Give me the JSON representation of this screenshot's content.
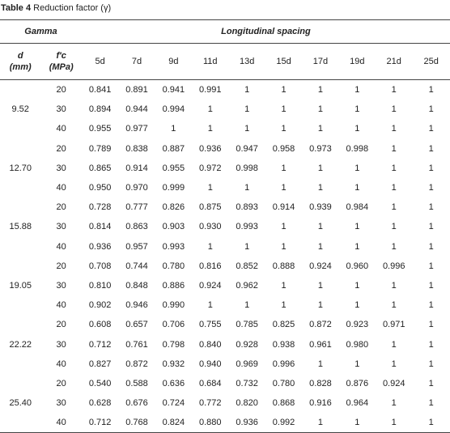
{
  "caption": {
    "label": "Table 4",
    "text": "Reduction factor (γ)"
  },
  "headers": {
    "gamma": "Gamma",
    "longitudinal": "Longitudinal spacing",
    "d_line1": "d",
    "d_line2": "(mm)",
    "fc_line1": "f′c",
    "fc_line2": "(MPa)",
    "spacings": [
      "5d",
      "7d",
      "9d",
      "11d",
      "13d",
      "15d",
      "17d",
      "19d",
      "21d",
      "25d"
    ]
  },
  "groups": [
    {
      "d": "9.52",
      "rows": [
        {
          "fc": "20",
          "values": [
            "0.841",
            "0.891",
            "0.941",
            "0.991",
            "1",
            "1",
            "1",
            "1",
            "1",
            "1"
          ]
        },
        {
          "fc": "30",
          "values": [
            "0.894",
            "0.944",
            "0.994",
            "1",
            "1",
            "1",
            "1",
            "1",
            "1",
            "1"
          ]
        },
        {
          "fc": "40",
          "values": [
            "0.955",
            "0.977",
            "1",
            "1",
            "1",
            "1",
            "1",
            "1",
            "1",
            "1"
          ]
        }
      ]
    },
    {
      "d": "12.70",
      "rows": [
        {
          "fc": "20",
          "values": [
            "0.789",
            "0.838",
            "0.887",
            "0.936",
            "0.947",
            "0.958",
            "0.973",
            "0.998",
            "1",
            "1"
          ]
        },
        {
          "fc": "30",
          "values": [
            "0.865",
            "0.914",
            "0.955",
            "0.972",
            "0.998",
            "1",
            "1",
            "1",
            "1",
            "1"
          ]
        },
        {
          "fc": "40",
          "values": [
            "0.950",
            "0.970",
            "0.999",
            "1",
            "1",
            "1",
            "1",
            "1",
            "1",
            "1"
          ]
        }
      ]
    },
    {
      "d": "15.88",
      "rows": [
        {
          "fc": "20",
          "values": [
            "0.728",
            "0.777",
            "0.826",
            "0.875",
            "0.893",
            "0.914",
            "0.939",
            "0.984",
            "1",
            "1"
          ]
        },
        {
          "fc": "30",
          "values": [
            "0.814",
            "0.863",
            "0.903",
            "0.930",
            "0.993",
            "1",
            "1",
            "1",
            "1",
            "1"
          ]
        },
        {
          "fc": "40",
          "values": [
            "0.936",
            "0.957",
            "0.993",
            "1",
            "1",
            "1",
            "1",
            "1",
            "1",
            "1"
          ]
        }
      ]
    },
    {
      "d": "19.05",
      "rows": [
        {
          "fc": "20",
          "values": [
            "0.708",
            "0.744",
            "0.780",
            "0.816",
            "0.852",
            "0.888",
            "0.924",
            "0.960",
            "0.996",
            "1"
          ]
        },
        {
          "fc": "30",
          "values": [
            "0.810",
            "0.848",
            "0.886",
            "0.924",
            "0.962",
            "1",
            "1",
            "1",
            "1",
            "1"
          ]
        },
        {
          "fc": "40",
          "values": [
            "0.902",
            "0.946",
            "0.990",
            "1",
            "1",
            "1",
            "1",
            "1",
            "1",
            "1"
          ]
        }
      ]
    },
    {
      "d": "22.22",
      "rows": [
        {
          "fc": "20",
          "values": [
            "0.608",
            "0.657",
            "0.706",
            "0.755",
            "0.785",
            "0.825",
            "0.872",
            "0.923",
            "0.971",
            "1"
          ]
        },
        {
          "fc": "30",
          "values": [
            "0.712",
            "0.761",
            "0.798",
            "0.840",
            "0.928",
            "0.938",
            "0.961",
            "0.980",
            "1",
            "1"
          ]
        },
        {
          "fc": "40",
          "values": [
            "0.827",
            "0.872",
            "0.932",
            "0.940",
            "0.969",
            "0.996",
            "1",
            "1",
            "1",
            "1"
          ]
        }
      ]
    },
    {
      "d": "25.40",
      "rows": [
        {
          "fc": "20",
          "values": [
            "0.540",
            "0.588",
            "0.636",
            "0.684",
            "0.732",
            "0.780",
            "0.828",
            "0.876",
            "0.924",
            "1"
          ]
        },
        {
          "fc": "30",
          "values": [
            "0.628",
            "0.676",
            "0.724",
            "0.772",
            "0.820",
            "0.868",
            "0.916",
            "0.964",
            "1",
            "1"
          ]
        },
        {
          "fc": "40",
          "values": [
            "0.712",
            "0.768",
            "0.824",
            "0.880",
            "0.936",
            "0.992",
            "1",
            "1",
            "1",
            "1"
          ]
        }
      ]
    }
  ]
}
